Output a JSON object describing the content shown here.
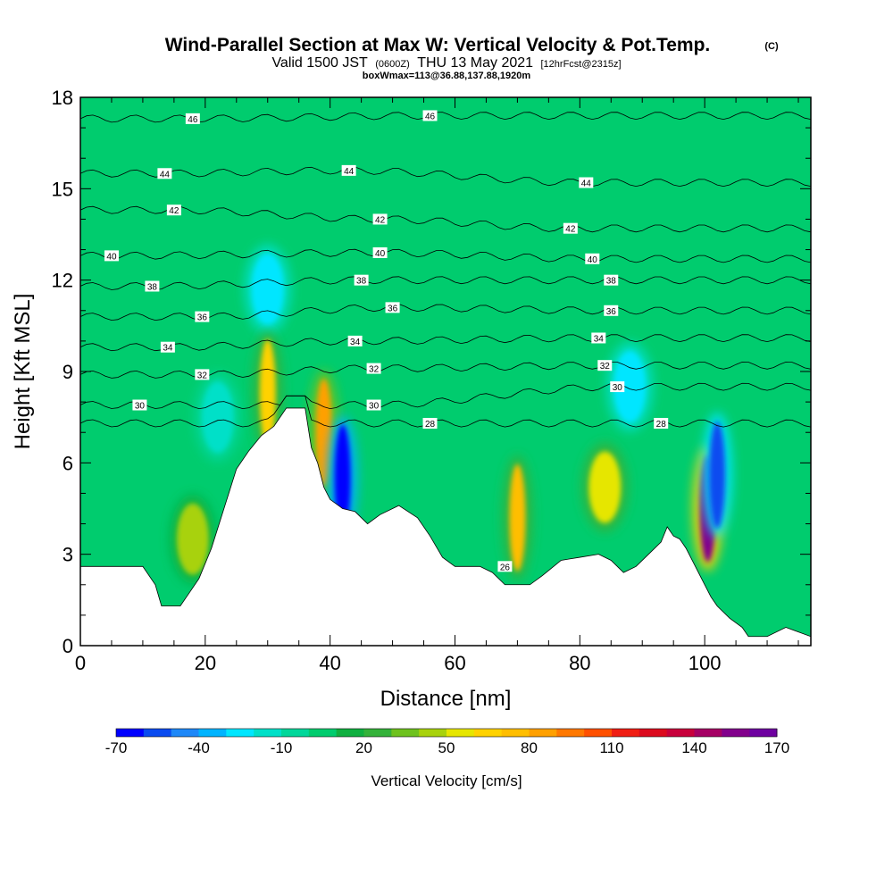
{
  "title": {
    "main": "Wind-Parallel Section at Max W: Vertical Velocity & Pot.Temp.",
    "copyright": "(C)",
    "valid_prefix": "Valid 1500 JST",
    "valid_utc": "(0600Z)",
    "valid_date": "THU 13 May 2021",
    "forecast": "[12hrFcst@2315z]",
    "box": "boxWmax=113@36.88,137.88,1920m"
  },
  "chart_data": {
    "type": "heatmap",
    "xlabel": "Distance [nm]",
    "ylabel": "Height [Kft MSL]",
    "xlim": [
      0,
      117
    ],
    "ylim": [
      0,
      18
    ],
    "x_ticks": [
      "0",
      "20",
      "40",
      "60",
      "80",
      "100"
    ],
    "y_ticks": [
      "0",
      "3",
      "6",
      "9",
      "12",
      "15",
      "18"
    ],
    "colorbar": {
      "label": "Vertical Velocity [cm/s]",
      "tick_labels": [
        "-70",
        "-40",
        "-10",
        "20",
        "50",
        "80",
        "110",
        "140",
        "170"
      ],
      "levels": [
        -70,
        -60,
        -50,
        -40,
        -30,
        -20,
        -10,
        0,
        10,
        20,
        30,
        40,
        50,
        60,
        70,
        80,
        90,
        100,
        110,
        120,
        130,
        140,
        150,
        160,
        170
      ],
      "colors": [
        "#0000ff",
        "#0a4bf0",
        "#1e88f8",
        "#00b4ff",
        "#00e6ff",
        "#00e0c8",
        "#00d79a",
        "#00cc6e",
        "#10b040",
        "#34b23a",
        "#6ec21e",
        "#a8d20c",
        "#e6e600",
        "#ffd200",
        "#ffbe00",
        "#ffa000",
        "#ff7800",
        "#ff5000",
        "#f01e14",
        "#dc0a1e",
        "#c8003c",
        "#a50064",
        "#82008c",
        "#6e00a0"
      ]
    },
    "background_w_cms": 5,
    "terrain_kft": [
      [
        0,
        2.6
      ],
      [
        10,
        2.6
      ],
      [
        12,
        2.0
      ],
      [
        13,
        1.3
      ],
      [
        16,
        1.3
      ],
      [
        17,
        1.6
      ],
      [
        19,
        2.2
      ],
      [
        21,
        3.2
      ],
      [
        23,
        4.5
      ],
      [
        25,
        5.8
      ],
      [
        27,
        6.4
      ],
      [
        29,
        6.9
      ],
      [
        31,
        7.2
      ],
      [
        33,
        7.8
      ],
      [
        36,
        7.8
      ],
      [
        37,
        6.5
      ],
      [
        38,
        6.0
      ],
      [
        39,
        5.2
      ],
      [
        40,
        4.8
      ],
      [
        42,
        4.5
      ],
      [
        44,
        4.4
      ],
      [
        46,
        4.0
      ],
      [
        48,
        4.3
      ],
      [
        51,
        4.6
      ],
      [
        54,
        4.2
      ],
      [
        56,
        3.6
      ],
      [
        58,
        2.9
      ],
      [
        60,
        2.6
      ],
      [
        64,
        2.6
      ],
      [
        66,
        2.4
      ],
      [
        68,
        2.0
      ],
      [
        72,
        2.0
      ],
      [
        74,
        2.3
      ],
      [
        77,
        2.8
      ],
      [
        80,
        2.9
      ],
      [
        83,
        3.0
      ],
      [
        85,
        2.8
      ],
      [
        87,
        2.4
      ],
      [
        89,
        2.6
      ],
      [
        91,
        3.0
      ],
      [
        93,
        3.4
      ],
      [
        94,
        3.9
      ],
      [
        95,
        3.6
      ],
      [
        96,
        3.5
      ],
      [
        97,
        3.2
      ],
      [
        98,
        2.8
      ],
      [
        99,
        2.4
      ],
      [
        100,
        2.0
      ],
      [
        101,
        1.6
      ],
      [
        102,
        1.3
      ],
      [
        104,
        0.9
      ],
      [
        106,
        0.6
      ],
      [
        107,
        0.3
      ],
      [
        110,
        0.3
      ],
      [
        113,
        0.6
      ],
      [
        117,
        0.3
      ]
    ],
    "vertical_velocity_features_cms": [
      {
        "x": 30,
        "y": 11.7,
        "w": -25
      },
      {
        "x": 30,
        "y": 8.3,
        "w": 60
      },
      {
        "x": 39,
        "y": 7.0,
        "w": 80
      },
      {
        "x": 42,
        "y": 5.5,
        "w": -70
      },
      {
        "x": 70,
        "y": 4.2,
        "w": 70
      },
      {
        "x": 84,
        "y": 5.2,
        "w": 55
      },
      {
        "x": 100.5,
        "y": 4.5,
        "w": 150
      },
      {
        "x": 102,
        "y": 5.6,
        "w": -60
      },
      {
        "x": 18,
        "y": 3.5,
        "w": 40
      },
      {
        "x": 22,
        "y": 7.5,
        "w": -20
      },
      {
        "x": 88,
        "y": 8.5,
        "w": -25
      }
    ],
    "theta_contours": [
      {
        "label": "46",
        "label_positions": [
          [
            18,
            17.3
          ],
          [
            56,
            17.4
          ]
        ]
      },
      {
        "label": "44",
        "label_positions": [
          [
            13.5,
            15.5
          ],
          [
            43,
            15.6
          ],
          [
            81,
            15.2
          ]
        ]
      },
      {
        "label": "42",
        "label_positions": [
          [
            15,
            14.3
          ],
          [
            48,
            14.0
          ],
          [
            78.5,
            13.7
          ]
        ]
      },
      {
        "label": "40",
        "label_positions": [
          [
            5,
            12.8
          ],
          [
            48,
            12.9
          ],
          [
            82,
            12.7
          ]
        ]
      },
      {
        "label": "38",
        "label_positions": [
          [
            11.5,
            11.8
          ],
          [
            45,
            12.0
          ],
          [
            85,
            12.0
          ]
        ]
      },
      {
        "label": "36",
        "label_positions": [
          [
            19.5,
            10.8
          ],
          [
            50,
            11.1
          ],
          [
            85,
            11.0
          ]
        ]
      },
      {
        "label": "34",
        "label_positions": [
          [
            14,
            9.8
          ],
          [
            44,
            10.0
          ],
          [
            83,
            10.1
          ]
        ]
      },
      {
        "label": "32",
        "label_positions": [
          [
            19.5,
            8.9
          ],
          [
            47,
            9.1
          ],
          [
            84,
            9.2
          ]
        ]
      },
      {
        "label": "30",
        "label_positions": [
          [
            9.5,
            7.9
          ],
          [
            47,
            7.9
          ],
          [
            86,
            8.5
          ]
        ]
      },
      {
        "label": "28",
        "label_positions": [
          [
            56,
            7.3
          ],
          [
            93,
            7.3
          ]
        ]
      },
      {
        "label": "26",
        "label_positions": [
          [
            68,
            2.6
          ]
        ]
      }
    ]
  }
}
